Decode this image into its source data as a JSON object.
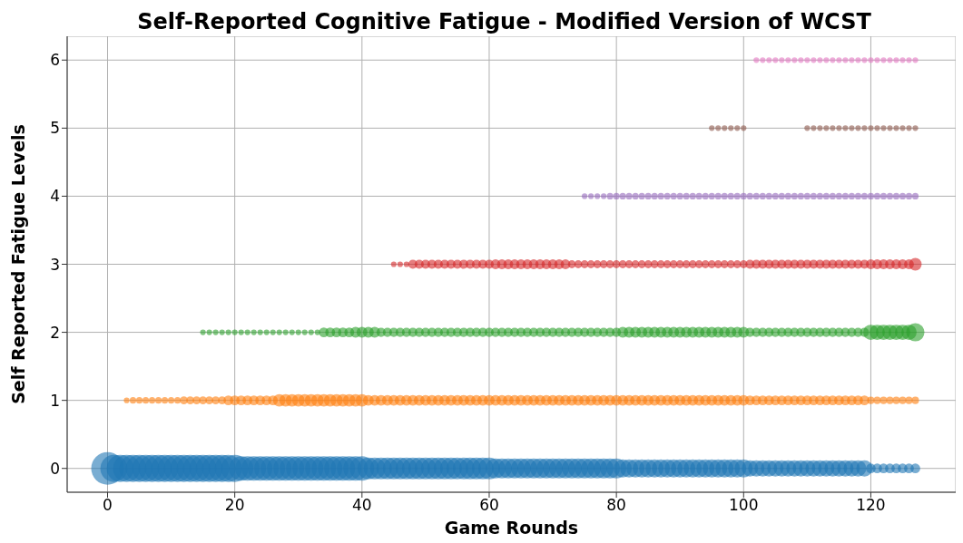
{
  "chart_data": {
    "type": "bubble",
    "title": "Self-Reported Cognitive Fatigue - Modified Version of WCST",
    "xlabel": "Game Rounds",
    "ylabel": "Self Reported Fatigue Levels",
    "xlim": [
      -6.35,
      133.35
    ],
    "xticks": [
      0,
      20,
      40,
      60,
      80,
      100,
      120
    ],
    "ylim": [
      -0.35,
      6.35
    ],
    "yticks": [
      0,
      1,
      2,
      3,
      4,
      5,
      6
    ],
    "grid": true,
    "legend": false,
    "marker": "circle",
    "series": [
      {
        "color": "#1f77b4",
        "x": [
          0,
          1,
          2,
          3,
          4,
          5,
          6,
          7,
          8,
          9,
          10,
          11,
          12,
          13,
          14,
          15,
          16,
          17,
          18,
          19,
          20,
          21,
          22,
          23,
          24,
          25,
          26,
          27,
          28,
          29,
          30,
          31,
          32,
          33,
          34,
          35,
          36,
          37,
          38,
          39,
          40,
          41,
          42,
          43,
          44,
          45,
          46,
          47,
          48,
          49,
          50,
          51,
          52,
          53,
          54,
          55,
          56,
          57,
          58,
          59,
          60,
          61,
          62,
          63,
          64,
          65,
          66,
          67,
          68,
          69,
          70,
          71,
          72,
          73,
          74,
          75,
          76,
          77,
          78,
          79,
          80,
          81,
          82,
          83,
          84,
          85,
          86,
          87,
          88,
          89,
          90,
          91,
          92,
          93,
          94,
          95,
          96,
          97,
          98,
          99,
          100,
          101,
          102,
          103,
          104,
          105,
          106,
          107,
          108,
          109,
          110,
          111,
          112,
          113,
          114,
          115,
          116,
          117,
          118,
          119,
          120,
          121,
          122,
          123,
          124,
          125,
          126,
          127
        ],
        "values": [
          0,
          0,
          0,
          0,
          0,
          0,
          0,
          0,
          0,
          0,
          0,
          0,
          0,
          0,
          0,
          0,
          0,
          0,
          0,
          0,
          0,
          0,
          0,
          0,
          0,
          0,
          0,
          0,
          0,
          0,
          0,
          0,
          0,
          0,
          0,
          0,
          0,
          0,
          0,
          0,
          0,
          0,
          0,
          0,
          0,
          0,
          0,
          0,
          0,
          0,
          0,
          0,
          0,
          0,
          0,
          0,
          0,
          0,
          0,
          0,
          0,
          0,
          0,
          0,
          0,
          0,
          0,
          0,
          0,
          0,
          0,
          0,
          0,
          0,
          0,
          0,
          0,
          0,
          0,
          0,
          0,
          0,
          0,
          0,
          0,
          0,
          0,
          0,
          0,
          0,
          0,
          0,
          0,
          0,
          0,
          0,
          0,
          0,
          0,
          0,
          0,
          0,
          0,
          0,
          0,
          0,
          0,
          0,
          0,
          0,
          0,
          0,
          0,
          0,
          0,
          0,
          0,
          0,
          0,
          0,
          0,
          0,
          0,
          0,
          0,
          0,
          0,
          0
        ],
        "sizes": [
          1,
          0.69,
          0.69,
          0.69,
          0.69,
          0.69,
          0.69,
          0.69,
          0.69,
          0.69,
          0.69,
          0.69,
          0.69,
          0.69,
          0.69,
          0.69,
          0.69,
          0.69,
          0.69,
          0.69,
          0.69,
          0.56,
          0.56,
          0.56,
          0.56,
          0.56,
          0.56,
          0.56,
          0.56,
          0.56,
          0.56,
          0.56,
          0.56,
          0.56,
          0.56,
          0.56,
          0.56,
          0.56,
          0.56,
          0.56,
          0.56,
          0.44,
          0.44,
          0.44,
          0.44,
          0.44,
          0.44,
          0.44,
          0.44,
          0.44,
          0.44,
          0.44,
          0.44,
          0.44,
          0.44,
          0.44,
          0.44,
          0.44,
          0.44,
          0.44,
          0.44,
          0.37,
          0.37,
          0.37,
          0.37,
          0.37,
          0.37,
          0.37,
          0.37,
          0.37,
          0.37,
          0.37,
          0.37,
          0.37,
          0.37,
          0.37,
          0.37,
          0.37,
          0.37,
          0.37,
          0.37,
          0.31,
          0.31,
          0.31,
          0.31,
          0.31,
          0.31,
          0.31,
          0.31,
          0.31,
          0.31,
          0.31,
          0.31,
          0.31,
          0.31,
          0.31,
          0.31,
          0.31,
          0.31,
          0.31,
          0.31,
          0.25,
          0.25,
          0.25,
          0.25,
          0.25,
          0.25,
          0.25,
          0.25,
          0.25,
          0.25,
          0.25,
          0.25,
          0.25,
          0.25,
          0.25,
          0.25,
          0.25,
          0.25,
          0.25,
          0.09,
          0.09,
          0.09,
          0.09,
          0.09,
          0.09,
          0.09,
          0.09
        ]
      },
      {
        "color": "#ff7f0e",
        "x": [
          3,
          4,
          5,
          6,
          7,
          8,
          9,
          10,
          11,
          12,
          13,
          14,
          15,
          16,
          17,
          18,
          19,
          20,
          21,
          22,
          23,
          24,
          25,
          26,
          27,
          28,
          29,
          30,
          31,
          32,
          33,
          34,
          35,
          36,
          37,
          38,
          39,
          40,
          41,
          42,
          43,
          44,
          45,
          46,
          47,
          48,
          49,
          50,
          51,
          52,
          53,
          54,
          55,
          56,
          57,
          58,
          59,
          60,
          61,
          62,
          63,
          64,
          65,
          66,
          67,
          68,
          69,
          70,
          71,
          72,
          73,
          74,
          75,
          76,
          77,
          78,
          79,
          80,
          81,
          82,
          83,
          84,
          85,
          86,
          87,
          88,
          89,
          90,
          91,
          92,
          93,
          94,
          95,
          96,
          97,
          98,
          99,
          100,
          101,
          102,
          103,
          104,
          105,
          106,
          107,
          108,
          109,
          110,
          111,
          112,
          113,
          114,
          115,
          116,
          117,
          118,
          119,
          120,
          121,
          122,
          123,
          124,
          125,
          126,
          127
        ],
        "values": [
          1,
          1,
          1,
          1,
          1,
          1,
          1,
          1,
          1,
          1,
          1,
          1,
          1,
          1,
          1,
          1,
          1,
          1,
          1,
          1,
          1,
          1,
          1,
          1,
          1,
          1,
          1,
          1,
          1,
          1,
          1,
          1,
          1,
          1,
          1,
          1,
          1,
          1,
          1,
          1,
          1,
          1,
          1,
          1,
          1,
          1,
          1,
          1,
          1,
          1,
          1,
          1,
          1,
          1,
          1,
          1,
          1,
          1,
          1,
          1,
          1,
          1,
          1,
          1,
          1,
          1,
          1,
          1,
          1,
          1,
          1,
          1,
          1,
          1,
          1,
          1,
          1,
          1,
          1,
          1,
          1,
          1,
          1,
          1,
          1,
          1,
          1,
          1,
          1,
          1,
          1,
          1,
          1,
          1,
          1,
          1,
          1,
          1,
          1,
          1,
          1,
          1,
          1,
          1,
          1,
          1,
          1,
          1,
          1,
          1,
          1,
          1,
          1,
          1,
          1,
          1,
          1,
          1,
          1,
          1,
          1,
          1,
          1,
          1,
          1
        ],
        "sizes": [
          0.03,
          0.04,
          0.04,
          0.04,
          0.04,
          0.04,
          0.04,
          0.04,
          0.04,
          0.06,
          0.06,
          0.06,
          0.06,
          0.06,
          0.06,
          0.06,
          0.09,
          0.09,
          0.09,
          0.09,
          0.09,
          0.09,
          0.09,
          0.09,
          0.15,
          0.15,
          0.15,
          0.15,
          0.15,
          0.15,
          0.15,
          0.15,
          0.15,
          0.15,
          0.15,
          0.15,
          0.15,
          0.15,
          0.11,
          0.11,
          0.11,
          0.11,
          0.11,
          0.11,
          0.11,
          0.11,
          0.11,
          0.11,
          0.11,
          0.11,
          0.11,
          0.11,
          0.11,
          0.11,
          0.11,
          0.11,
          0.11,
          0.11,
          0.11,
          0.11,
          0.11,
          0.11,
          0.11,
          0.11,
          0.11,
          0.11,
          0.11,
          0.11,
          0.11,
          0.11,
          0.11,
          0.11,
          0.11,
          0.11,
          0.11,
          0.11,
          0.11,
          0.11,
          0.11,
          0.11,
          0.11,
          0.11,
          0.11,
          0.11,
          0.11,
          0.11,
          0.11,
          0.11,
          0.11,
          0.11,
          0.11,
          0.11,
          0.11,
          0.11,
          0.11,
          0.11,
          0.11,
          0.11,
          0.09,
          0.09,
          0.09,
          0.09,
          0.09,
          0.09,
          0.09,
          0.09,
          0.09,
          0.09,
          0.09,
          0.09,
          0.09,
          0.09,
          0.09,
          0.09,
          0.09,
          0.09,
          0.09,
          0.05,
          0.05,
          0.05,
          0.05,
          0.05,
          0.05,
          0.05,
          0.05
        ]
      },
      {
        "color": "#2ca02c",
        "x": [
          15,
          16,
          17,
          18,
          19,
          20,
          21,
          22,
          23,
          24,
          25,
          26,
          27,
          28,
          29,
          30,
          31,
          32,
          33,
          34,
          35,
          36,
          37,
          38,
          39,
          40,
          41,
          42,
          43,
          44,
          45,
          46,
          47,
          48,
          49,
          50,
          51,
          52,
          53,
          54,
          55,
          56,
          57,
          58,
          59,
          60,
          61,
          62,
          63,
          64,
          65,
          66,
          67,
          68,
          69,
          70,
          71,
          72,
          73,
          74,
          75,
          76,
          77,
          78,
          79,
          80,
          81,
          82,
          83,
          84,
          85,
          86,
          87,
          88,
          89,
          90,
          91,
          92,
          93,
          94,
          95,
          96,
          97,
          98,
          99,
          100,
          101,
          102,
          103,
          104,
          105,
          106,
          107,
          108,
          109,
          110,
          111,
          112,
          113,
          114,
          115,
          116,
          117,
          118,
          119,
          120,
          121,
          122,
          123,
          124,
          125,
          126,
          127
        ],
        "values": [
          2,
          2,
          2,
          2,
          2,
          2,
          2,
          2,
          2,
          2,
          2,
          2,
          2,
          2,
          2,
          2,
          2,
          2,
          2,
          2,
          2,
          2,
          2,
          2,
          2,
          2,
          2,
          2,
          2,
          2,
          2,
          2,
          2,
          2,
          2,
          2,
          2,
          2,
          2,
          2,
          2,
          2,
          2,
          2,
          2,
          2,
          2,
          2,
          2,
          2,
          2,
          2,
          2,
          2,
          2,
          2,
          2,
          2,
          2,
          2,
          2,
          2,
          2,
          2,
          2,
          2,
          2,
          2,
          2,
          2,
          2,
          2,
          2,
          2,
          2,
          2,
          2,
          2,
          2,
          2,
          2,
          2,
          2,
          2,
          2,
          2,
          2,
          2,
          2,
          2,
          2,
          2,
          2,
          2,
          2,
          2,
          2,
          2,
          2,
          2,
          2,
          2,
          2,
          2,
          2,
          2,
          2,
          2,
          2,
          2,
          2,
          2,
          2
        ],
        "sizes": [
          0.03,
          0.03,
          0.03,
          0.03,
          0.03,
          0.03,
          0.03,
          0.03,
          0.03,
          0.03,
          0.03,
          0.03,
          0.03,
          0.03,
          0.03,
          0.03,
          0.03,
          0.03,
          0.03,
          0.09,
          0.09,
          0.09,
          0.09,
          0.09,
          0.11,
          0.11,
          0.11,
          0.11,
          0.08,
          0.08,
          0.08,
          0.08,
          0.08,
          0.08,
          0.08,
          0.08,
          0.08,
          0.08,
          0.08,
          0.08,
          0.08,
          0.08,
          0.08,
          0.08,
          0.08,
          0.08,
          0.08,
          0.08,
          0.08,
          0.08,
          0.08,
          0.08,
          0.08,
          0.08,
          0.08,
          0.08,
          0.08,
          0.08,
          0.08,
          0.08,
          0.08,
          0.08,
          0.08,
          0.08,
          0.08,
          0.08,
          0.11,
          0.11,
          0.11,
          0.11,
          0.11,
          0.11,
          0.11,
          0.11,
          0.11,
          0.11,
          0.11,
          0.11,
          0.11,
          0.11,
          0.11,
          0.11,
          0.11,
          0.11,
          0.11,
          0.11,
          0.08,
          0.08,
          0.08,
          0.08,
          0.08,
          0.08,
          0.08,
          0.08,
          0.08,
          0.08,
          0.08,
          0.08,
          0.08,
          0.08,
          0.08,
          0.08,
          0.08,
          0.08,
          0.08,
          0.22,
          0.22,
          0.22,
          0.22,
          0.22,
          0.22,
          0.22,
          0.31
        ]
      },
      {
        "color": "#d62728",
        "x": [
          45,
          46,
          47,
          48,
          49,
          50,
          51,
          52,
          53,
          54,
          55,
          56,
          57,
          58,
          59,
          60,
          61,
          62,
          63,
          64,
          65,
          66,
          67,
          68,
          69,
          70,
          71,
          72,
          73,
          74,
          75,
          76,
          77,
          78,
          79,
          80,
          81,
          82,
          83,
          84,
          85,
          86,
          87,
          88,
          89,
          90,
          91,
          92,
          93,
          94,
          95,
          96,
          97,
          98,
          99,
          100,
          101,
          102,
          103,
          104,
          105,
          106,
          107,
          108,
          109,
          110,
          111,
          112,
          113,
          114,
          115,
          116,
          117,
          118,
          119,
          120,
          121,
          122,
          123,
          124,
          125,
          126,
          127
        ],
        "values": [
          3,
          3,
          3,
          3,
          3,
          3,
          3,
          3,
          3,
          3,
          3,
          3,
          3,
          3,
          3,
          3,
          3,
          3,
          3,
          3,
          3,
          3,
          3,
          3,
          3,
          3,
          3,
          3,
          3,
          3,
          3,
          3,
          3,
          3,
          3,
          3,
          3,
          3,
          3,
          3,
          3,
          3,
          3,
          3,
          3,
          3,
          3,
          3,
          3,
          3,
          3,
          3,
          3,
          3,
          3,
          3,
          3,
          3,
          3,
          3,
          3,
          3,
          3,
          3,
          3,
          3,
          3,
          3,
          3,
          3,
          3,
          3,
          3,
          3,
          3,
          3,
          3,
          3,
          3,
          3,
          3,
          3,
          3
        ],
        "sizes": [
          0.03,
          0.03,
          0.03,
          0.08,
          0.08,
          0.08,
          0.08,
          0.08,
          0.08,
          0.08,
          0.08,
          0.08,
          0.08,
          0.08,
          0.08,
          0.08,
          0.09,
          0.09,
          0.09,
          0.09,
          0.09,
          0.09,
          0.09,
          0.09,
          0.09,
          0.09,
          0.09,
          0.09,
          0.06,
          0.06,
          0.06,
          0.06,
          0.06,
          0.06,
          0.06,
          0.06,
          0.06,
          0.06,
          0.06,
          0.06,
          0.06,
          0.06,
          0.06,
          0.06,
          0.06,
          0.06,
          0.06,
          0.06,
          0.06,
          0.06,
          0.06,
          0.06,
          0.06,
          0.06,
          0.06,
          0.06,
          0.08,
          0.08,
          0.08,
          0.08,
          0.08,
          0.08,
          0.08,
          0.08,
          0.08,
          0.08,
          0.08,
          0.08,
          0.08,
          0.08,
          0.08,
          0.08,
          0.08,
          0.08,
          0.08,
          0.09,
          0.09,
          0.09,
          0.09,
          0.09,
          0.09,
          0.09,
          0.15
        ]
      },
      {
        "color": "#9467bd",
        "x": [
          75,
          76,
          77,
          78,
          79,
          80,
          81,
          82,
          83,
          84,
          85,
          86,
          87,
          88,
          89,
          90,
          91,
          92,
          93,
          94,
          95,
          96,
          97,
          98,
          99,
          100,
          101,
          102,
          103,
          104,
          105,
          106,
          107,
          108,
          109,
          110,
          111,
          112,
          113,
          114,
          115,
          116,
          117,
          118,
          119,
          120,
          121,
          122,
          123,
          124,
          125,
          126,
          127
        ],
        "values": [
          4,
          4,
          4,
          4,
          4,
          4,
          4,
          4,
          4,
          4,
          4,
          4,
          4,
          4,
          4,
          4,
          4,
          4,
          4,
          4,
          4,
          4,
          4,
          4,
          4,
          4,
          4,
          4,
          4,
          4,
          4,
          4,
          4,
          4,
          4,
          4,
          4,
          4,
          4,
          4,
          4,
          4,
          4,
          4,
          4,
          4,
          4,
          4,
          4,
          4,
          4,
          4,
          4
        ],
        "sizes": [
          0.03,
          0.03,
          0.03,
          0.03,
          0.04,
          0.04,
          0.04,
          0.04,
          0.04,
          0.04,
          0.04,
          0.04,
          0.04,
          0.04,
          0.04,
          0.04,
          0.04,
          0.04,
          0.04,
          0.04,
          0.04,
          0.04,
          0.04,
          0.04,
          0.04,
          0.04,
          0.04,
          0.04,
          0.04,
          0.04,
          0.04,
          0.04,
          0.04,
          0.04,
          0.04,
          0.04,
          0.04,
          0.04,
          0.04,
          0.04,
          0.04,
          0.04,
          0.04,
          0.04,
          0.04,
          0.04,
          0.04,
          0.04,
          0.04,
          0.04,
          0.04,
          0.04,
          0.04
        ]
      },
      {
        "color": "#8c564b",
        "x": [
          95,
          96,
          97,
          98,
          99,
          100,
          110,
          111,
          112,
          113,
          114,
          115,
          116,
          117,
          118,
          119,
          120,
          121,
          122,
          123,
          124,
          125,
          126,
          127
        ],
        "values": [
          5,
          5,
          5,
          5,
          5,
          5,
          5,
          5,
          5,
          5,
          5,
          5,
          5,
          5,
          5,
          5,
          5,
          5,
          5,
          5,
          5,
          5,
          5,
          5
        ],
        "sizes": [
          0.03,
          0.03,
          0.03,
          0.03,
          0.03,
          0.03,
          0.03,
          0.03,
          0.03,
          0.03,
          0.03,
          0.03,
          0.03,
          0.03,
          0.03,
          0.03,
          0.03,
          0.03,
          0.03,
          0.03,
          0.03,
          0.03,
          0.03,
          0.03
        ]
      },
      {
        "color": "#e377c2",
        "x": [
          102,
          103,
          104,
          105,
          106,
          107,
          108,
          109,
          110,
          111,
          112,
          113,
          114,
          115,
          116,
          117,
          118,
          119,
          120,
          121,
          122,
          123,
          124,
          125,
          126,
          127
        ],
        "values": [
          6,
          6,
          6,
          6,
          6,
          6,
          6,
          6,
          6,
          6,
          6,
          6,
          6,
          6,
          6,
          6,
          6,
          6,
          6,
          6,
          6,
          6,
          6,
          6,
          6,
          6
        ],
        "sizes": [
          0.03,
          0.03,
          0.03,
          0.03,
          0.03,
          0.03,
          0.03,
          0.03,
          0.03,
          0.03,
          0.03,
          0.03,
          0.03,
          0.03,
          0.03,
          0.03,
          0.03,
          0.03,
          0.03,
          0.03,
          0.03,
          0.03,
          0.03,
          0.03,
          0.03,
          0.03
        ]
      }
    ]
  }
}
